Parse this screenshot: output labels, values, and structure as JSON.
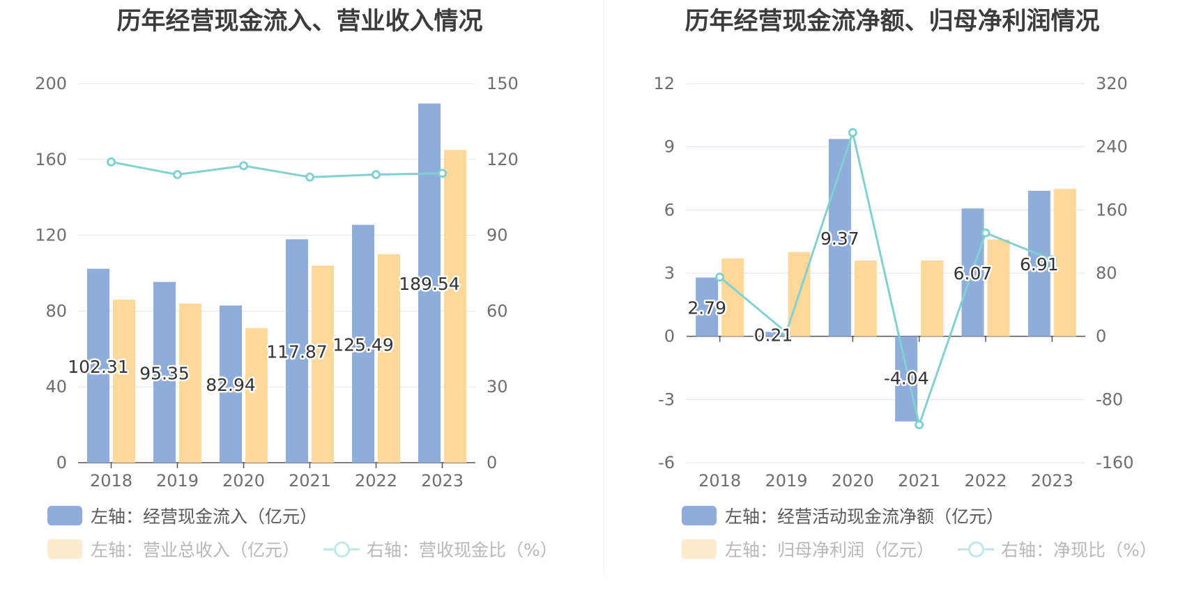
{
  "colors": {
    "bar_primary": "#8eadda",
    "bar_secondary": "#fed899",
    "line": "#81d1d2",
    "axis_text": "#6e6e6e",
    "grid": "#e0e5f2",
    "title": "#3c3c3c"
  },
  "chart_data": [
    {
      "type": "bar",
      "title": "历年经营现金流入、营业收入情况",
      "categories": [
        "2018",
        "2019",
        "2020",
        "2021",
        "2022",
        "2023"
      ],
      "left_axis": {
        "ylim": [
          0,
          200
        ],
        "ticks": [
          "0",
          "40",
          "80",
          "120",
          "160",
          "200"
        ]
      },
      "right_axis": {
        "ylim": [
          0,
          150
        ],
        "ticks": [
          "0",
          "30",
          "60",
          "90",
          "120",
          "150"
        ]
      },
      "grid": true,
      "legend_position": "bottom-left",
      "series": [
        {
          "name": "左轴：经营现金流入（亿元）",
          "kind": "bar",
          "axis": "left",
          "values": [
            102.31,
            95.35,
            82.94,
            117.87,
            125.49,
            189.54
          ],
          "labels": [
            "102.31",
            "95.35",
            "82.94",
            "117.87",
            "125.49",
            "189.54"
          ]
        },
        {
          "name": "左轴：营业总收入（亿元）",
          "kind": "bar",
          "axis": "left",
          "values": [
            86,
            84,
            71,
            104,
            110,
            165
          ],
          "legend_faded": true
        },
        {
          "name": "右轴：营收现金比（%）",
          "kind": "line",
          "axis": "right",
          "values": [
            119,
            114,
            117.5,
            113,
            114,
            114.5
          ],
          "legend_faded": true
        }
      ]
    },
    {
      "type": "bar",
      "title": "历年经营现金流净额、归母净利润情况",
      "categories": [
        "2018",
        "2019",
        "2020",
        "2021",
        "2022",
        "2023"
      ],
      "left_axis": {
        "ylim": [
          -6,
          12
        ],
        "ticks": [
          "-6",
          "-3",
          "0",
          "3",
          "6",
          "9",
          "12"
        ]
      },
      "right_axis": {
        "ylim": [
          -160,
          320
        ],
        "ticks": [
          "-160",
          "-80",
          "0",
          "80",
          "160",
          "240",
          "320"
        ]
      },
      "grid": true,
      "legend_position": "bottom-left",
      "series": [
        {
          "name": "左轴：经营活动现金流净额（亿元）",
          "kind": "bar",
          "axis": "left",
          "values": [
            2.79,
            0.21,
            9.37,
            -4.04,
            6.07,
            6.91
          ],
          "labels": [
            "2.79",
            "0.21",
            "9.37",
            "-4.04",
            "6.07",
            "6.91"
          ]
        },
        {
          "name": "左轴：归母净利润（亿元）",
          "kind": "bar",
          "axis": "left",
          "values": [
            3.7,
            4.0,
            3.6,
            3.6,
            4.6,
            7.0
          ],
          "legend_faded": true
        },
        {
          "name": "右轴：净现比（%）",
          "kind": "line",
          "axis": "right",
          "values": [
            75,
            5,
            258,
            -112,
            131,
            97
          ],
          "legend_faded": true
        }
      ]
    }
  ]
}
